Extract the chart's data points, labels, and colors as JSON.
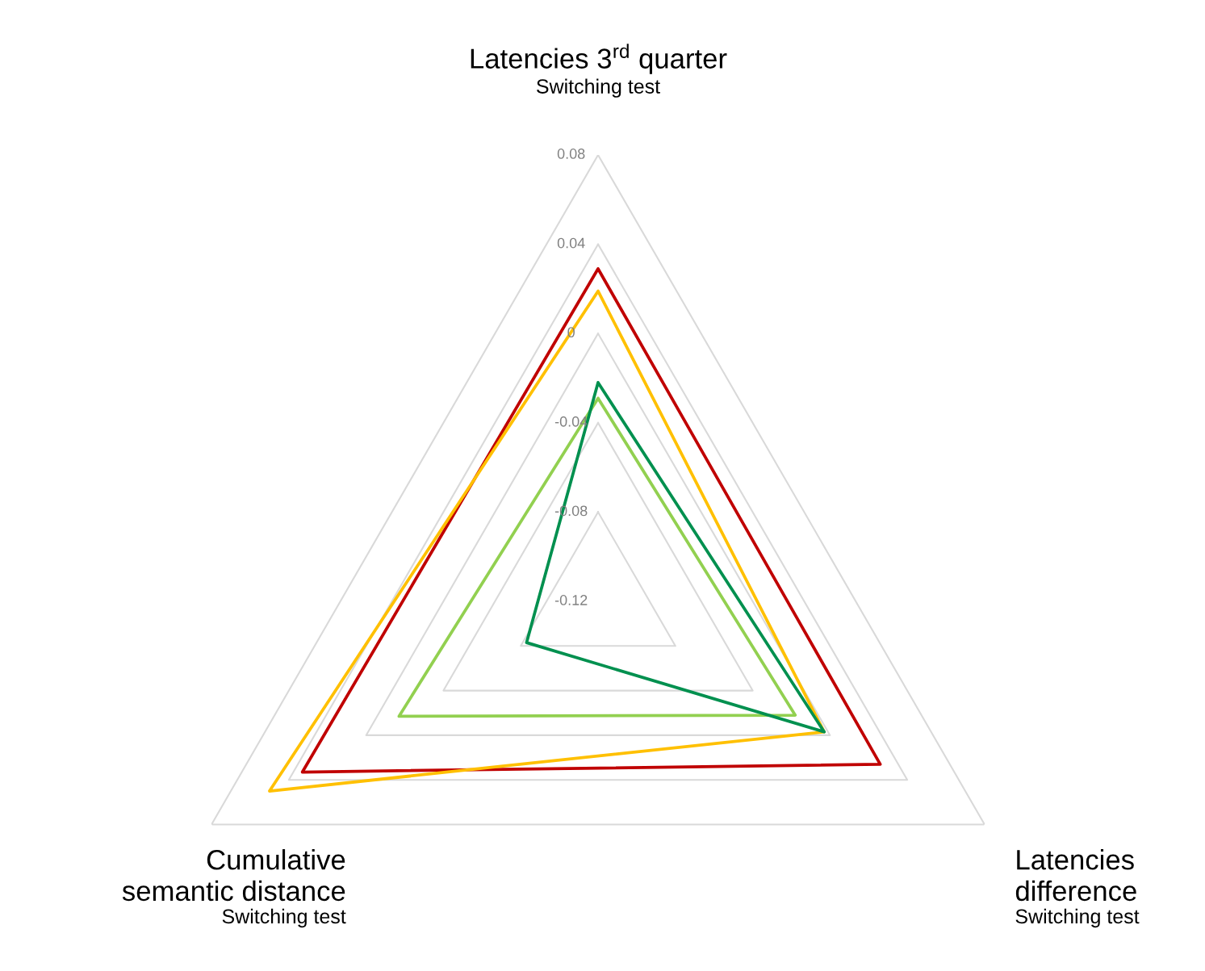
{
  "chart_data": {
    "type": "radar",
    "categories": [
      "Latencies 3$^{rd}$ quarter\nSwitching test",
      "Latencies\ndifference\nSwitching test",
      "Cumulative\nsemantic distance\nSwitching test"
    ],
    "ylim": [
      -0.12,
      0.08
    ],
    "yticks": [
      -0.12,
      -0.08,
      -0.04,
      0,
      0.04,
      0.08
    ],
    "grid": true,
    "series": [
      {
        "color": "#c00000",
        "values": [
          0.029,
          0.026,
          0.033
        ]
      },
      {
        "color": "#ffc000",
        "values": [
          0.019,
          -0.003,
          0.05
        ]
      },
      {
        "color": "#92d050",
        "values": [
          -0.029,
          -0.018,
          -0.017
        ]
      },
      {
        "color": "#00904f",
        "values": [
          -0.022,
          -0.003,
          -0.083
        ]
      }
    ]
  }
}
